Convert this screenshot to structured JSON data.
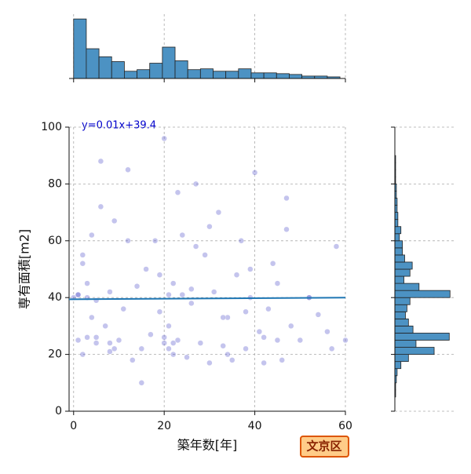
{
  "chart_data": [
    {
      "type": "scatter",
      "xlabel": "築年数[年]",
      "ylabel": "専有面積[m2]",
      "x": [
        1,
        1,
        2,
        2,
        3,
        3,
        4,
        5,
        5,
        6,
        7,
        8,
        8,
        9,
        10,
        11,
        12,
        13,
        14,
        15,
        16,
        17,
        18,
        19,
        20,
        20,
        21,
        21,
        22,
        22,
        23,
        24,
        25,
        26,
        27,
        28,
        29,
        30,
        31,
        32,
        33,
        34,
        35,
        36,
        37,
        38,
        39,
        40,
        41,
        42,
        43,
        44,
        45,
        46,
        47,
        48,
        50,
        52,
        54,
        56,
        58,
        60,
        0,
        2,
        4,
        6,
        9,
        12,
        15,
        19,
        21,
        23,
        26,
        30,
        34,
        38,
        42,
        47,
        52,
        57,
        1,
        3,
        5,
        8,
        20,
        22,
        24,
        27,
        33,
        39,
        45
      ],
      "y": [
        25,
        41,
        20,
        55,
        45,
        26,
        62,
        24,
        39,
        88,
        30,
        42,
        21,
        67,
        25,
        36,
        85,
        18,
        44,
        22,
        50,
        27,
        60,
        35,
        24,
        96,
        22,
        41,
        45,
        20,
        25,
        62,
        19,
        38,
        80,
        24,
        55,
        17,
        42,
        70,
        23,
        33,
        18,
        48,
        60,
        22,
        40,
        84,
        28,
        17,
        36,
        52,
        45,
        18,
        64,
        30,
        25,
        40,
        34,
        28,
        58,
        25,
        40,
        52,
        33,
        72,
        22,
        60,
        10,
        48,
        30,
        77,
        43,
        65,
        20,
        35,
        26,
        75,
        40,
        22,
        41,
        40,
        26,
        24,
        26,
        24,
        41,
        58,
        33,
        50,
        25
      ],
      "color": "#5555cc",
      "xlim": [
        -1,
        60
      ],
      "ylim": [
        0,
        100
      ],
      "xticks": [
        0,
        20,
        40,
        60
      ],
      "yticks": [
        0,
        20,
        40,
        60,
        80,
        100
      ],
      "grid": true,
      "regression": {
        "slope": 0.01,
        "intercept": 39.4,
        "color": "#1f77b4"
      },
      "annotation": "y=0.01x+39.4"
    },
    {
      "type": "histogram",
      "orientation": "vertical",
      "bins": [
        0,
        2.8,
        5.6,
        8.4,
        11.2,
        14,
        16.8,
        19.6,
        22.4,
        25.2,
        28,
        30.8,
        33.6,
        36.4,
        39.2,
        42,
        44.8,
        47.6,
        50.4,
        53.2,
        56,
        58.8
      ],
      "values": [
        74,
        37,
        27,
        21,
        9,
        11,
        19,
        39,
        22,
        11,
        12,
        9,
        9,
        12,
        7,
        7,
        6,
        5,
        3,
        3,
        2
      ],
      "color": "#4c92c3",
      "xlim": [
        -1,
        60
      ],
      "ylim": [
        0,
        80
      ],
      "xticks": [
        0,
        20,
        40,
        60
      ],
      "grid": true
    },
    {
      "type": "histogram",
      "orientation": "horizontal",
      "bins": [
        0,
        2.5,
        5,
        7.5,
        10,
        12.5,
        15,
        17.5,
        20,
        22.5,
        25,
        27.5,
        30,
        32.5,
        35,
        37.5,
        40,
        42.5,
        45,
        47.5,
        50,
        52.5,
        55,
        57.5,
        60,
        62.5,
        65,
        67.5,
        70,
        72.5,
        75,
        77.5,
        80,
        82.5,
        85,
        87.5,
        90,
        92.5,
        95,
        97.5,
        100
      ],
      "values": [
        0,
        0,
        1,
        1,
        2,
        3,
        8,
        18,
        52,
        28,
        72,
        24,
        18,
        14,
        16,
        20,
        73,
        32,
        12,
        20,
        23,
        13,
        10,
        10,
        6,
        8,
        4,
        4,
        3,
        3,
        2,
        2,
        1,
        1,
        1,
        1,
        0,
        0,
        0,
        0
      ],
      "color": "#4c92c3",
      "xlim": [
        0,
        80
      ],
      "ylim": [
        0,
        100
      ],
      "yticks": [
        0,
        20,
        40,
        60,
        80,
        100
      ],
      "grid": true
    }
  ],
  "badge": "文京区"
}
